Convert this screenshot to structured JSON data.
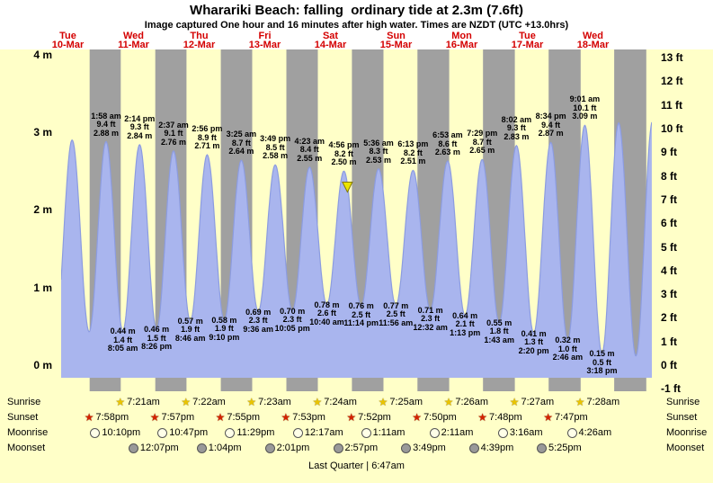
{
  "title": "Wharariki Beach: falling  ordinary tide at 2.3m (7.6ft)",
  "subtitle": "Image captured One hour and 16 minutes after high water. Times are NZDT (UTC +13.0hrs)",
  "days": [
    {
      "name": "Tue",
      "date": "10-Mar"
    },
    {
      "name": "Wed",
      "date": "11-Mar"
    },
    {
      "name": "Thu",
      "date": "12-Mar"
    },
    {
      "name": "Fri",
      "date": "13-Mar"
    },
    {
      "name": "Sat",
      "date": "14-Mar"
    },
    {
      "name": "Sun",
      "date": "15-Mar"
    },
    {
      "name": "Mon",
      "date": "16-Mar"
    },
    {
      "name": "Tue",
      "date": "17-Mar"
    },
    {
      "name": "Wed",
      "date": "18-Mar"
    }
  ],
  "y_axis": {
    "left_labels": [
      "4 m",
      "3 m",
      "2 m",
      "1 m",
      "0 m"
    ],
    "left_values_m": [
      4,
      3,
      2,
      1,
      0
    ],
    "right_labels": [
      "13 ft",
      "12 ft",
      "11 ft",
      "10 ft",
      "9 ft",
      "8 ft",
      "7 ft",
      "6 ft",
      "5 ft",
      "4 ft",
      "3 ft",
      "2 ft",
      "1 ft",
      "0 ft",
      "-1 ft"
    ],
    "right_values_ft": [
      13,
      12,
      11,
      10,
      9,
      8,
      7,
      6,
      5,
      4,
      3,
      2,
      1,
      0,
      -1
    ]
  },
  "chart_data": {
    "type": "area",
    "series_name": "tide height",
    "x_axis_note": "hours since Tue 10-Mar 00:00 NZDT",
    "ylim_m": [
      -0.33,
      4.07
    ],
    "tide_extremes": [
      {
        "type": "low",
        "t": 7.35,
        "m": "0.42",
        "labeled": false
      },
      {
        "type": "high",
        "t": 13.55,
        "m": "2.90",
        "labeled": false
      },
      {
        "type": "low",
        "t": 19.77,
        "m": "0.43",
        "labeled": false
      },
      {
        "type": "high",
        "t": 25.97,
        "time": "1:58 am",
        "day": "Wed 11-Mar",
        "m": "2.88",
        "ft": "9.4",
        "labeled": true
      },
      {
        "type": "low",
        "t": 32.08,
        "time": "8:05 am",
        "day": "Wed 11-Mar",
        "m": "0.44",
        "ft": "1.4",
        "labeled": true
      },
      {
        "type": "high",
        "t": 38.23,
        "time": "2:14 pm",
        "day": "Wed 11-Mar",
        "m": "2.84",
        "ft": "9.3",
        "labeled": true
      },
      {
        "type": "low",
        "t": 44.43,
        "time": "8:26 pm",
        "day": "Wed 11-Mar",
        "m": "0.46",
        "ft": "1.5",
        "labeled": true
      },
      {
        "type": "high",
        "t": 50.62,
        "time": "2:37 am",
        "day": "Thu 12-Mar",
        "m": "2.76",
        "ft": "9.1",
        "labeled": true
      },
      {
        "type": "low",
        "t": 56.77,
        "time": "8:46 am",
        "day": "Thu 12-Mar",
        "m": "0.57",
        "ft": "1.9",
        "labeled": true
      },
      {
        "type": "high",
        "t": 62.93,
        "time": "2:56 pm",
        "day": "Thu 12-Mar",
        "m": "2.71",
        "ft": "8.9",
        "labeled": true
      },
      {
        "type": "low",
        "t": 69.17,
        "time": "9:10 pm",
        "day": "Thu 12-Mar",
        "m": "0.58",
        "ft": "1.9",
        "labeled": true
      },
      {
        "type": "high",
        "t": 75.42,
        "time": "3:25 am",
        "day": "Fri 13-Mar",
        "m": "2.64",
        "ft": "8.7",
        "labeled": true
      },
      {
        "type": "low",
        "t": 81.6,
        "time": "9:36 am",
        "day": "Fri 13-Mar",
        "m": "0.69",
        "ft": "2.3",
        "labeled": true
      },
      {
        "type": "high",
        "t": 87.82,
        "time": "3:49 pm",
        "day": "Fri 13-Mar",
        "m": "2.58",
        "ft": "8.5",
        "labeled": true
      },
      {
        "type": "low",
        "t": 94.08,
        "time": "10:05 pm",
        "day": "Fri 13-Mar",
        "m": "0.70",
        "ft": "2.3",
        "labeled": true
      },
      {
        "type": "high",
        "t": 100.38,
        "time": "4:23 am",
        "day": "Sat 14-Mar",
        "m": "2.55",
        "ft": "8.4",
        "labeled": true
      },
      {
        "type": "low",
        "t": 106.67,
        "time": "10:40 am",
        "day": "Sat 14-Mar",
        "m": "0.78",
        "ft": "2.6",
        "labeled": true
      },
      {
        "type": "high",
        "t": 112.93,
        "time": "4:56 pm",
        "day": "Sat 14-Mar",
        "m": "2.50",
        "ft": "8.2",
        "labeled": true
      },
      {
        "type": "low",
        "t": 119.23,
        "time": "11:14 pm",
        "day": "Sat 14-Mar",
        "m": "0.76",
        "ft": "2.5",
        "labeled": true
      },
      {
        "type": "high",
        "t": 125.6,
        "time": "5:36 am",
        "day": "Sun 15-Mar",
        "m": "2.53",
        "ft": "8.3",
        "labeled": true
      },
      {
        "type": "low",
        "t": 131.93,
        "time": "11:56 am",
        "day": "Sun 15-Mar",
        "m": "0.77",
        "ft": "2.5",
        "labeled": true
      },
      {
        "type": "high",
        "t": 138.22,
        "time": "6:13 pm",
        "day": "Sun 15-Mar",
        "m": "2.51",
        "ft": "8.2",
        "labeled": true
      },
      {
        "type": "low",
        "t": 144.53,
        "time": "12:32 am",
        "day": "Mon 16-Mar",
        "m": "0.71",
        "ft": "2.3",
        "labeled": true
      },
      {
        "type": "high",
        "t": 150.88,
        "time": "6:53 am",
        "day": "Mon 16-Mar",
        "m": "2.63",
        "ft": "8.6",
        "labeled": true
      },
      {
        "type": "low",
        "t": 157.22,
        "time": "1:13 pm",
        "day": "Mon 16-Mar",
        "m": "0.64",
        "ft": "2.1",
        "labeled": true
      },
      {
        "type": "high",
        "t": 163.48,
        "time": "7:29 pm",
        "day": "Mon 16-Mar",
        "m": "2.65",
        "ft": "8.7",
        "labeled": true
      },
      {
        "type": "low",
        "t": 169.72,
        "time": "1:43 am",
        "day": "Tue 17-Mar",
        "m": "0.55",
        "ft": "1.8",
        "labeled": true
      },
      {
        "type": "high",
        "t": 176.03,
        "time": "8:02 am",
        "day": "Tue 17-Mar",
        "m": "2.83",
        "ft": "9.3",
        "labeled": true
      },
      {
        "type": "low",
        "t": 182.33,
        "time": "2:20 pm",
        "day": "Tue 17-Mar",
        "m": "0.41",
        "ft": "1.3",
        "labeled": true
      },
      {
        "type": "high",
        "t": 188.57,
        "time": "8:34 pm",
        "day": "Tue 17-Mar",
        "m": "2.87",
        "ft": "9.4",
        "labeled": true
      },
      {
        "type": "low",
        "t": 194.77,
        "time": "2:46 am",
        "day": "Wed 18-Mar",
        "m": "0.32",
        "ft": "1.0",
        "labeled": true
      },
      {
        "type": "high",
        "t": 201.02,
        "time": "9:01 am",
        "day": "Wed 18-Mar",
        "m": "3.09",
        "ft": "10.1",
        "labeled": true
      },
      {
        "type": "low",
        "t": 207.3,
        "time": "3:18 pm",
        "day": "Wed 18-Mar",
        "m": "0.15",
        "ft": "0.5",
        "labeled": true
      },
      {
        "type": "high",
        "t": 213.4,
        "m": "3.12",
        "labeled": false
      },
      {
        "type": "low",
        "t": 219.7,
        "m": "0.12",
        "labeled": false
      },
      {
        "type": "high",
        "t": 225.82,
        "m": "3.15",
        "labeled": false
      }
    ],
    "current_marker": {
      "t": 114.2,
      "height_m": 2.3
    },
    "night_bands_hours": [
      [
        19.97,
        31.35
      ],
      [
        43.95,
        55.37
      ],
      [
        67.92,
        79.38
      ],
      [
        91.88,
        103.4
      ],
      [
        115.87,
        127.42
      ],
      [
        139.83,
        151.43
      ],
      [
        163.8,
        175.45
      ],
      [
        187.78,
        199.47
      ],
      [
        211.75,
        223.48
      ]
    ]
  },
  "astro": {
    "rows": [
      {
        "id": "sunrise",
        "label": "Sunrise",
        "icon": "sunrise-star",
        "color": "#e9c400",
        "entries": [
          {
            "time": "7:21am",
            "t": 31.35
          },
          {
            "time": "7:22am",
            "t": 55.37
          },
          {
            "time": "7:23am",
            "t": 79.38
          },
          {
            "time": "7:24am",
            "t": 103.4
          },
          {
            "time": "7:25am",
            "t": 127.42
          },
          {
            "time": "7:26am",
            "t": 151.43
          },
          {
            "time": "7:27am",
            "t": 175.45
          },
          {
            "time": "7:28am",
            "t": 199.47
          }
        ]
      },
      {
        "id": "sunset",
        "label": "Sunset",
        "icon": "sunset-star",
        "color": "#d42200",
        "entries": [
          {
            "time": "7:58pm",
            "t": 19.97
          },
          {
            "time": "7:57pm",
            "t": 43.95
          },
          {
            "time": "7:55pm",
            "t": 67.92
          },
          {
            "time": "7:53pm",
            "t": 91.88
          },
          {
            "time": "7:52pm",
            "t": 115.87
          },
          {
            "time": "7:50pm",
            "t": 139.83
          },
          {
            "time": "7:48pm",
            "t": 163.8
          },
          {
            "time": "7:47pm",
            "t": 187.78
          }
        ]
      },
      {
        "id": "moonrise",
        "label": "Moonrise",
        "icon": "moonrise-circle",
        "color": "#ffffe8",
        "entries": [
          {
            "time": "10:10pm",
            "t": 22.17
          },
          {
            "time": "10:47pm",
            "t": 46.78
          },
          {
            "time": "11:29pm",
            "t": 71.48
          },
          {
            "time": "12:17am",
            "t": 96.28
          },
          {
            "time": "1:11am",
            "t": 121.18
          },
          {
            "time": "2:11am",
            "t": 146.18
          },
          {
            "time": "3:16am",
            "t": 171.27
          },
          {
            "time": "4:26am",
            "t": 196.43
          }
        ]
      },
      {
        "id": "moonset",
        "label": "Moonset",
        "icon": "moonset-circle",
        "color": "#999999",
        "entries": [
          {
            "time": "12:07pm",
            "t": 36.12
          },
          {
            "time": "1:04pm",
            "t": 61.07
          },
          {
            "time": "2:01pm",
            "t": 86.02
          },
          {
            "time": "2:57pm",
            "t": 110.95
          },
          {
            "time": "3:49pm",
            "t": 135.82
          },
          {
            "time": "4:39pm",
            "t": 160.65
          },
          {
            "time": "5:25pm",
            "t": 185.42
          }
        ]
      }
    ],
    "footer": "Last Quarter | 6:47am"
  },
  "colors": {
    "page_bg": "#ffffff",
    "chart_bg": "#ffffc8",
    "night_band": "#a0a0a0",
    "tide_fill": "#a9b5ee",
    "tide_edge": "#8c9ce0",
    "day_label_red": "#d40000",
    "marker_yellow": "#ece400",
    "marker_outline": "#857a00"
  }
}
